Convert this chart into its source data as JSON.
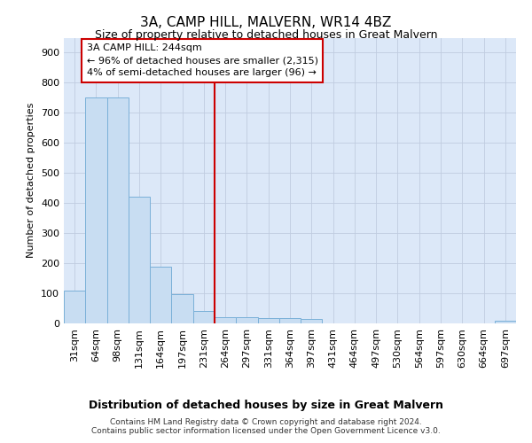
{
  "title": "3A, CAMP HILL, MALVERN, WR14 4BZ",
  "subtitle": "Size of property relative to detached houses in Great Malvern",
  "xlabel": "Distribution of detached houses by size in Great Malvern",
  "ylabel": "Number of detached properties",
  "bar_color": "#c8ddf2",
  "bar_edge_color": "#7ab0d8",
  "fig_bg_color": "#ffffff",
  "plot_bg_color": "#dce8f8",
  "categories": [
    "31sqm",
    "64sqm",
    "98sqm",
    "131sqm",
    "164sqm",
    "197sqm",
    "231sqm",
    "264sqm",
    "297sqm",
    "331sqm",
    "364sqm",
    "397sqm",
    "431sqm",
    "464sqm",
    "497sqm",
    "530sqm",
    "564sqm",
    "597sqm",
    "630sqm",
    "664sqm",
    "697sqm"
  ],
  "values": [
    110,
    750,
    752,
    420,
    190,
    97,
    42,
    20,
    20,
    18,
    18,
    15,
    0,
    0,
    0,
    0,
    0,
    0,
    0,
    0,
    8
  ],
  "ylim": [
    0,
    950
  ],
  "yticks": [
    0,
    100,
    200,
    300,
    400,
    500,
    600,
    700,
    800,
    900
  ],
  "vline_x": 6.5,
  "annotation_text_line1": "3A CAMP HILL: 244sqm",
  "annotation_text_line2": "← 96% of detached houses are smaller (2,315)",
  "annotation_text_line3": "4% of semi-detached houses are larger (96) →",
  "footer": "Contains HM Land Registry data © Crown copyright and database right 2024.\nContains public sector information licensed under the Open Government Licence v3.0.",
  "grid_color": "#c0cce0",
  "vline_color": "#cc0000",
  "title_fontsize": 11,
  "subtitle_fontsize": 9,
  "tick_fontsize": 8,
  "ylabel_fontsize": 8,
  "xlabel_fontsize": 9,
  "footer_fontsize": 6.5
}
